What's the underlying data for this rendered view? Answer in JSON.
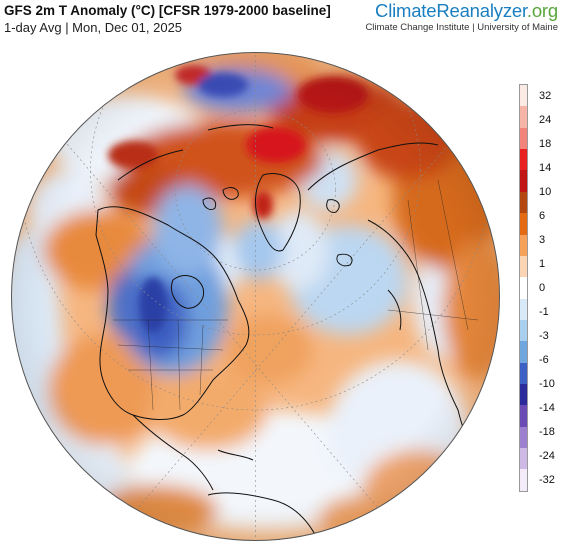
{
  "header": {
    "title": "GFS 2m T Anomaly (°C) [CFSR 1979-2000 baseline]",
    "subtitle": "1-day Avg | Mon, Dec 01, 2025"
  },
  "brand": {
    "name_part1": "Climate",
    "name_part2": "Reanalyzer",
    "name_part3": ".org",
    "tagline": "Climate Change Institute | University of Maine"
  },
  "map": {
    "projection": "orthographic-north-polar",
    "description_regions": [
      "north-america-cold-anomaly",
      "siberia-warm-anomaly",
      "arctic-warm-anomaly"
    ]
  },
  "legend": {
    "labels": [
      "32",
      "24",
      "18",
      "14",
      "10",
      "6",
      "3",
      "1",
      "0",
      "-1",
      "-3",
      "-6",
      "-10",
      "-14",
      "-18",
      "-24",
      "-32"
    ],
    "colors": [
      "#fbe9e4",
      "#f6b4a6",
      "#f2837a",
      "#e8201f",
      "#c11414",
      "#b3470f",
      "#e36a13",
      "#f5a15a",
      "#fbd4b4",
      "#ffffff",
      "#d8e9f8",
      "#a9cfee",
      "#6fa6de",
      "#3b5fc4",
      "#2b2a9c",
      "#6a4bb5",
      "#9d7fd0",
      "#cdb8e6",
      "#f3ebf7"
    ]
  }
}
